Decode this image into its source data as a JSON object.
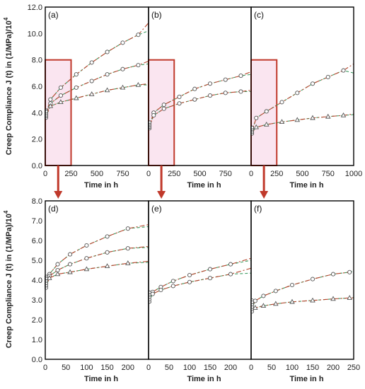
{
  "figure": {
    "ylabel_main": "Creep Compliance J (t) in (1/MPa)/10",
    "ylabel_sup": "4",
    "xlabel": "Time in h",
    "colors": {
      "fit_red": "#b5452c",
      "fit_green": "#3c9a5f",
      "marker": "#555555",
      "highlight_box": "#c0392b",
      "highlight_fill": "#f6cfe4",
      "arrow": "#c0392b"
    }
  },
  "chart_data": [
    {
      "panel": "(a)",
      "type": "line",
      "xlim": [
        0,
        1000
      ],
      "ylim": [
        0,
        12
      ],
      "yticks": [
        "0.0",
        "2.0",
        "4.0",
        "6.0",
        "8.0",
        "10.0",
        "12.0"
      ],
      "xticks": [
        "0",
        "250",
        "500",
        "750"
      ],
      "highlight": {
        "x0": 0,
        "x1": 250,
        "y1": 8
      },
      "series": [
        {
          "marker": "circle",
          "points": [
            [
              0,
              3.7
            ],
            [
              50,
              5.0
            ],
            [
              150,
              5.9
            ],
            [
              300,
              6.9
            ],
            [
              450,
              7.8
            ],
            [
              600,
              8.6
            ],
            [
              750,
              9.3
            ],
            [
              900,
              9.9
            ]
          ],
          "fit_red_end": 10.8,
          "fit_green_end": 10.2
        },
        {
          "marker": "circle",
          "points": [
            [
              0,
              3.7
            ],
            [
              50,
              4.7
            ],
            [
              150,
              5.3
            ],
            [
              300,
              5.9
            ],
            [
              450,
              6.4
            ],
            [
              600,
              6.9
            ],
            [
              750,
              7.3
            ],
            [
              900,
              7.6
            ]
          ],
          "fit_red_end": 7.9,
          "fit_green_end": 7.7
        },
        {
          "marker": "triangle",
          "points": [
            [
              0,
              3.6
            ],
            [
              50,
              4.5
            ],
            [
              150,
              4.8
            ],
            [
              300,
              5.1
            ],
            [
              450,
              5.4
            ],
            [
              600,
              5.7
            ],
            [
              750,
              5.9
            ],
            [
              900,
              6.1
            ]
          ],
          "fit_red_end": 6.2,
          "fit_green_end": 6.1
        }
      ]
    },
    {
      "panel": "(b)",
      "type": "line",
      "xlim": [
        0,
        1000
      ],
      "ylim": [
        0,
        12
      ],
      "yticks": [],
      "xticks": [
        "0",
        "250",
        "500",
        "750"
      ],
      "highlight": {
        "x0": 0,
        "x1": 250,
        "y1": 8
      },
      "series": [
        {
          "marker": "circle",
          "points": [
            [
              0,
              2.8
            ],
            [
              50,
              4.0
            ],
            [
              150,
              4.6
            ],
            [
              300,
              5.2
            ],
            [
              450,
              5.8
            ],
            [
              600,
              6.2
            ],
            [
              750,
              6.5
            ],
            [
              900,
              6.8
            ]
          ],
          "fit_red_end": 7.1,
          "fit_green_end": 6.9
        },
        {
          "marker": "circle",
          "points": [
            [
              0,
              2.8
            ],
            [
              50,
              3.8
            ],
            [
              150,
              4.3
            ],
            [
              300,
              4.7
            ],
            [
              450,
              5.0
            ],
            [
              600,
              5.3
            ],
            [
              750,
              5.5
            ],
            [
              900,
              5.6
            ]
          ],
          "fit_red_end": 5.7,
          "fit_green_end": 5.6
        }
      ]
    },
    {
      "panel": "(c)",
      "type": "line",
      "xlim": [
        0,
        1000
      ],
      "ylim": [
        0,
        12
      ],
      "yticks": [],
      "xticks": [
        "0",
        "250",
        "500",
        "750",
        "1000"
      ],
      "highlight": {
        "x0": 0,
        "x1": 250,
        "y1": 8
      },
      "series": [
        {
          "marker": "circle",
          "points": [
            [
              0,
              2.4
            ],
            [
              50,
              3.6
            ],
            [
              150,
              4.1
            ],
            [
              300,
              4.8
            ],
            [
              450,
              5.5
            ],
            [
              600,
              6.2
            ],
            [
              750,
              6.7
            ],
            [
              900,
              7.2
            ]
          ],
          "fit_red_end": 7.7,
          "fit_green_end": 7.0
        },
        {
          "marker": "triangle",
          "points": [
            [
              0,
              2.4
            ],
            [
              50,
              2.9
            ],
            [
              150,
              3.1
            ],
            [
              300,
              3.3
            ],
            [
              450,
              3.45
            ],
            [
              600,
              3.6
            ],
            [
              750,
              3.7
            ],
            [
              900,
              3.8
            ]
          ],
          "fit_red_end": 3.9,
          "fit_green_end": 3.85
        }
      ]
    },
    {
      "panel": "(d)",
      "type": "line",
      "xlim": [
        0,
        250
      ],
      "ylim": [
        0,
        8
      ],
      "yticks": [
        "0.0",
        "1.0",
        "2.0",
        "3.0",
        "4.0",
        "5.0",
        "6.0",
        "7.0",
        "8.0"
      ],
      "xticks": [
        "0",
        "50",
        "100",
        "150",
        "200"
      ],
      "series": [
        {
          "marker": "circle",
          "points": [
            [
              0,
              3.7
            ],
            [
              10,
              4.3
            ],
            [
              30,
              4.8
            ],
            [
              60,
              5.3
            ],
            [
              100,
              5.75
            ],
            [
              150,
              6.2
            ],
            [
              200,
              6.6
            ]
          ],
          "fit_red_end": 6.8,
          "fit_green_end": 6.7
        },
        {
          "marker": "circle",
          "points": [
            [
              0,
              3.7
            ],
            [
              10,
              4.2
            ],
            [
              30,
              4.5
            ],
            [
              60,
              4.8
            ],
            [
              100,
              5.1
            ],
            [
              150,
              5.4
            ],
            [
              200,
              5.6
            ]
          ],
          "fit_red_end": 5.7,
          "fit_green_end": 5.65
        },
        {
          "marker": "triangle",
          "points": [
            [
              0,
              3.6
            ],
            [
              10,
              4.1
            ],
            [
              30,
              4.3
            ],
            [
              60,
              4.4
            ],
            [
              100,
              4.55
            ],
            [
              150,
              4.7
            ],
            [
              200,
              4.85
            ]
          ],
          "fit_red_end": 4.95,
          "fit_green_end": 4.9
        }
      ]
    },
    {
      "panel": "(e)",
      "type": "line",
      "xlim": [
        0,
        250
      ],
      "ylim": [
        0,
        8
      ],
      "yticks": [],
      "xticks": [
        "0",
        "50",
        "100",
        "150",
        "200"
      ],
      "series": [
        {
          "marker": "circle",
          "points": [
            [
              0,
              2.9
            ],
            [
              10,
              3.4
            ],
            [
              30,
              3.65
            ],
            [
              60,
              3.95
            ],
            [
              100,
              4.25
            ],
            [
              150,
              4.55
            ],
            [
              200,
              4.8
            ]
          ],
          "fit_red_end": 5.1,
          "fit_green_end": 5.0
        },
        {
          "marker": "circle",
          "points": [
            [
              0,
              2.9
            ],
            [
              10,
              3.3
            ],
            [
              30,
              3.5
            ],
            [
              60,
              3.7
            ],
            [
              100,
              3.9
            ],
            [
              150,
              4.1
            ],
            [
              200,
              4.3
            ]
          ],
          "fit_red_end": 4.6,
          "fit_green_end": 4.35
        }
      ]
    },
    {
      "panel": "(f)",
      "type": "line",
      "xlim": [
        0,
        250
      ],
      "ylim": [
        0,
        8
      ],
      "yticks": [],
      "xticks": [
        "0",
        "50",
        "100",
        "150",
        "200",
        "250"
      ],
      "series": [
        {
          "marker": "circle",
          "points": [
            [
              0,
              2.5
            ],
            [
              10,
              2.95
            ],
            [
              30,
              3.2
            ],
            [
              60,
              3.45
            ],
            [
              100,
              3.75
            ],
            [
              150,
              4.05
            ],
            [
              200,
              4.3
            ],
            [
              240,
              4.4
            ]
          ],
          "fit_red_end": 4.5,
          "fit_green_end": 4.45
        },
        {
          "marker": "triangle",
          "points": [
            [
              0,
              2.4
            ],
            [
              10,
              2.6
            ],
            [
              30,
              2.7
            ],
            [
              60,
              2.8
            ],
            [
              100,
              2.9
            ],
            [
              150,
              2.97
            ],
            [
              200,
              3.05
            ],
            [
              240,
              3.1
            ]
          ],
          "fit_red_end": 3.1,
          "fit_green_end": 3.12
        }
      ]
    }
  ]
}
